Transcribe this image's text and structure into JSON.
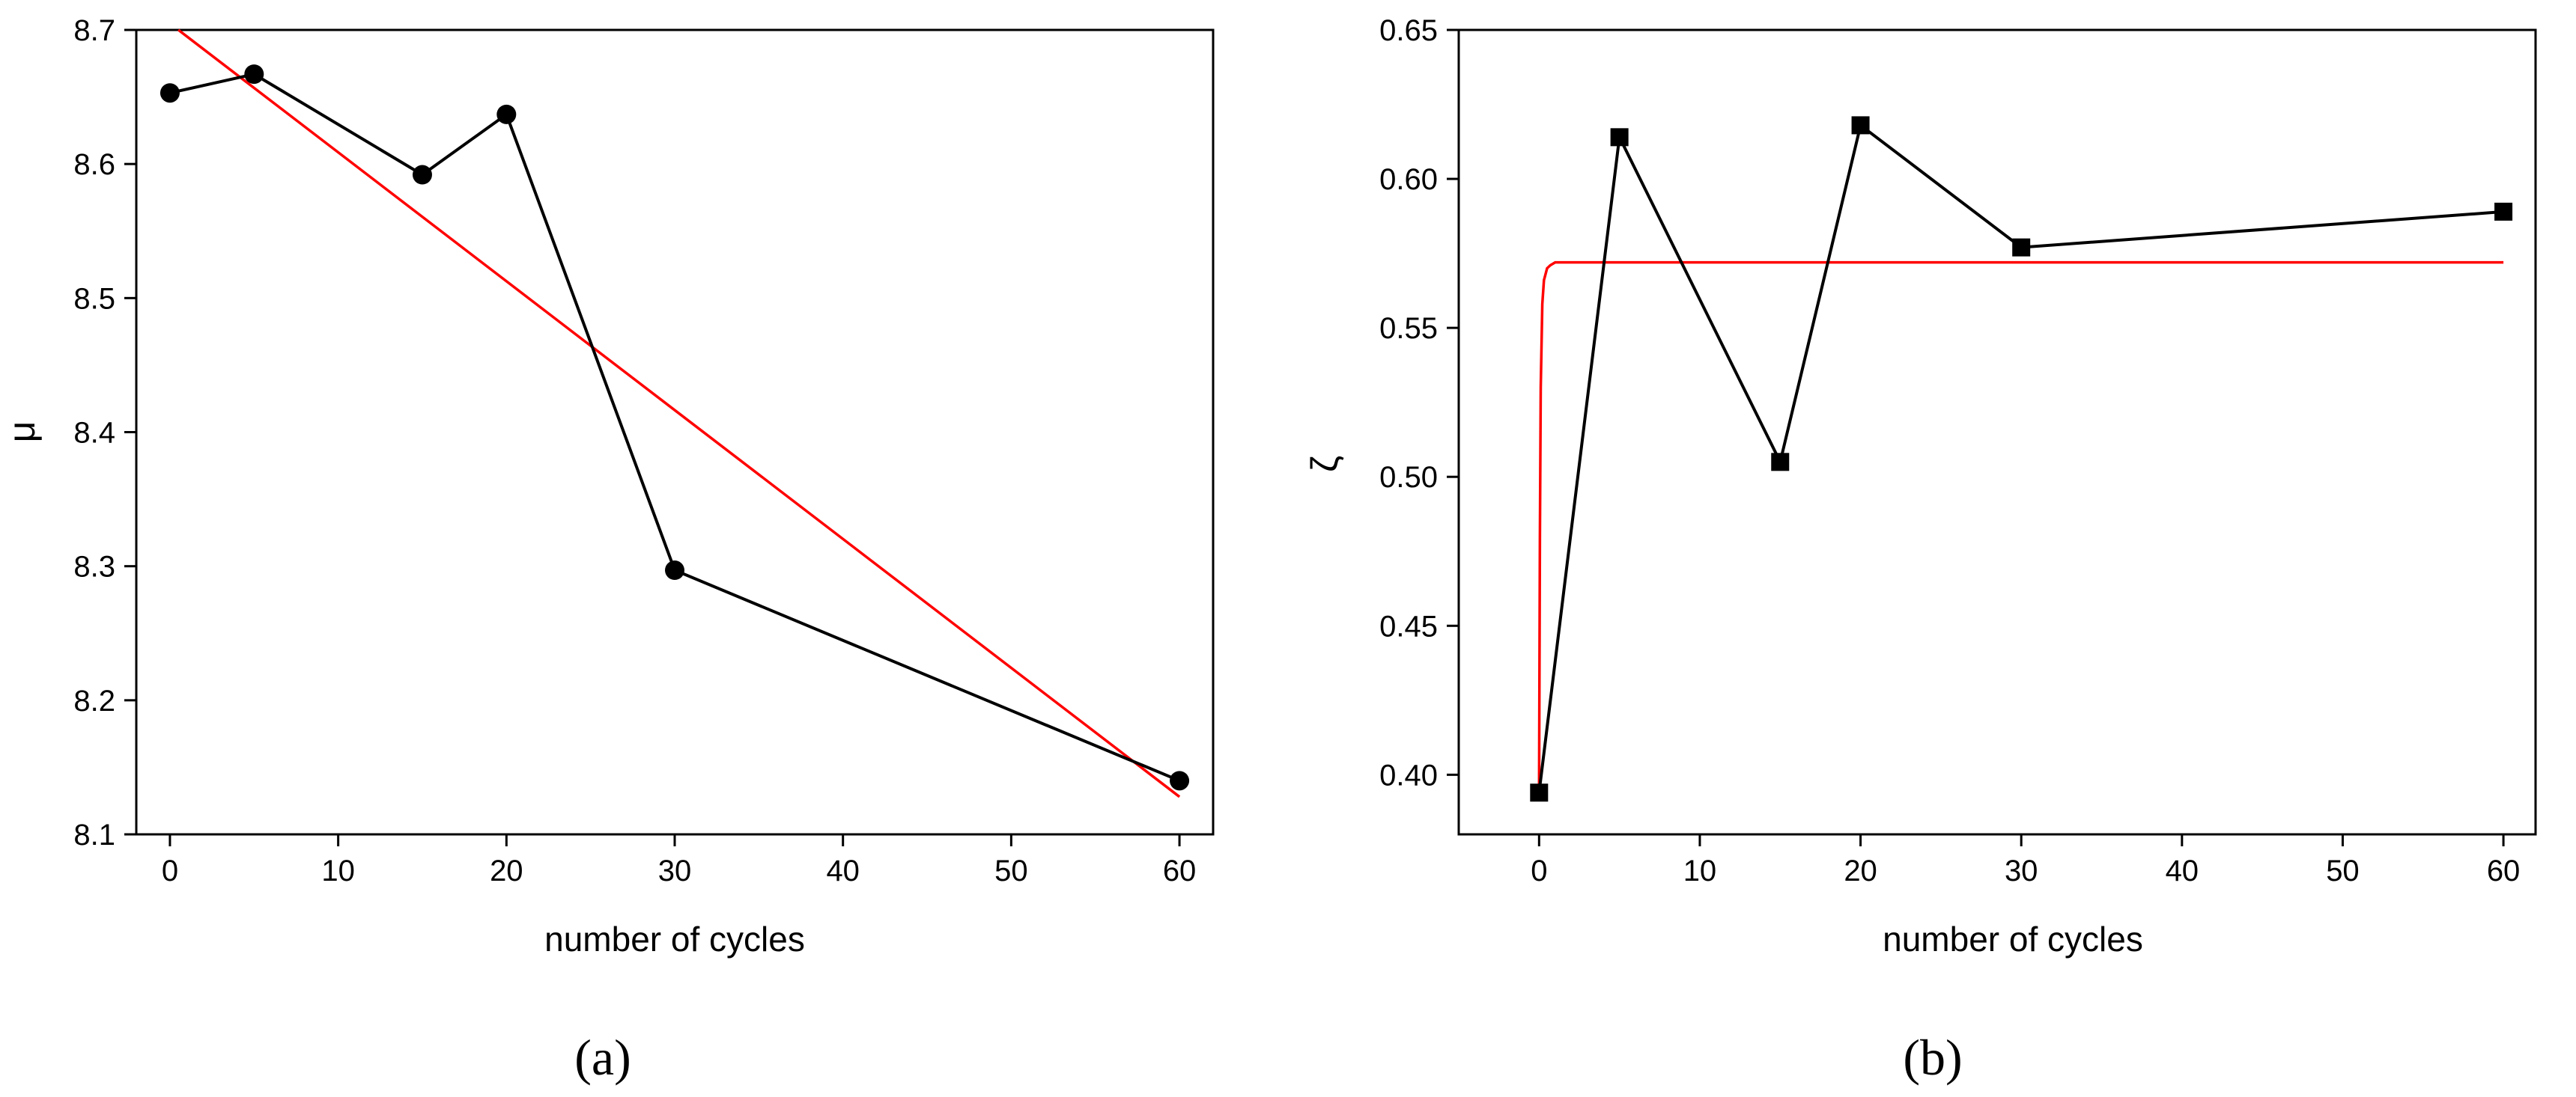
{
  "chart_data": [
    {
      "type": "line",
      "xlabel": "number of cycles",
      "ylabel": "μ",
      "xlim": [
        -2,
        62
      ],
      "ylim": [
        8.1,
        8.7
      ],
      "xticks": [
        0,
        10,
        20,
        30,
        40,
        50,
        60
      ],
      "yticks": [
        8.1,
        8.2,
        8.3,
        8.4,
        8.5,
        8.6,
        8.7
      ],
      "ytick_labels": [
        "8.1",
        "8.2",
        "8.3",
        "8.4",
        "8.5",
        "8.6",
        "8.7"
      ],
      "marker": "circle",
      "series": [
        {
          "x": [
            0,
            5,
            15,
            20,
            30,
            60
          ],
          "values": [
            8.653,
            8.667,
            8.592,
            8.637,
            8.297,
            8.14
          ],
          "color": "#000000"
        }
      ],
      "fit": {
        "x": [
          0.5,
          60
        ],
        "values": [
          8.7,
          8.128
        ],
        "color": "#ff0000"
      },
      "grid": false,
      "caption": "(a)"
    },
    {
      "type": "line",
      "xlabel": "number of cycles",
      "ylabel": "ζ",
      "xlim": [
        -5,
        62
      ],
      "ylim": [
        0.38,
        0.65
      ],
      "xticks": [
        0,
        10,
        20,
        30,
        40,
        50,
        60
      ],
      "yticks": [
        0.4,
        0.45,
        0.5,
        0.55,
        0.6,
        0.65
      ],
      "ytick_labels": [
        "0.40",
        "0.45",
        "0.50",
        "0.55",
        "0.60",
        "0.65"
      ],
      "marker": "square",
      "series": [
        {
          "x": [
            0,
            5,
            15,
            20,
            30,
            60
          ],
          "values": [
            0.394,
            0.614,
            0.505,
            0.618,
            0.577,
            0.589
          ],
          "color": "#000000"
        }
      ],
      "fit": {
        "x": [
          0,
          0.05,
          0.1,
          0.2,
          0.3,
          0.5,
          0.7,
          1,
          2,
          60
        ],
        "values": [
          0.396,
          0.48,
          0.53,
          0.558,
          0.566,
          0.57,
          0.571,
          0.572,
          0.572,
          0.572
        ],
        "color": "#ff0000"
      },
      "grid": false,
      "caption": "(b)"
    }
  ]
}
